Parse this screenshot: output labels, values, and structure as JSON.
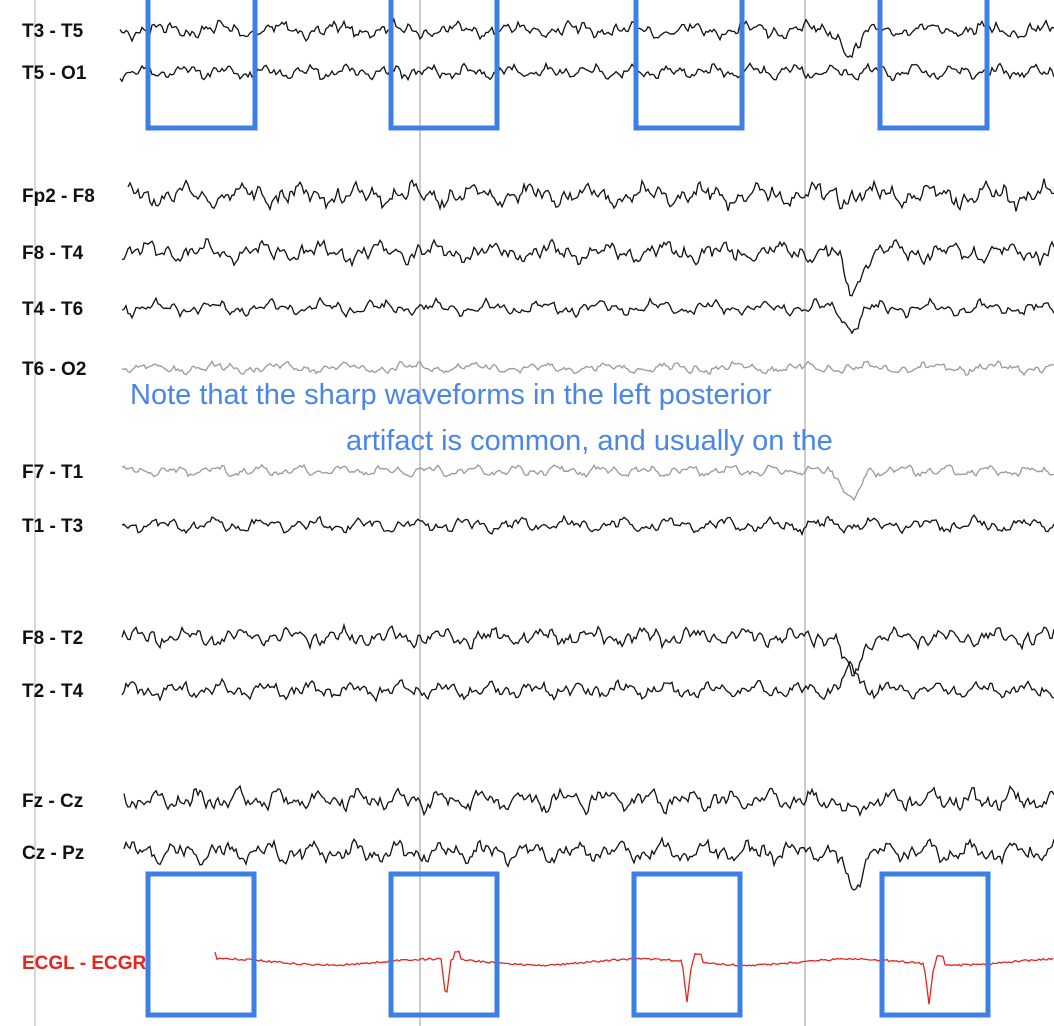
{
  "channels": [
    "T3 - T5",
    "T5 - O1",
    "Fp2 - F8",
    "F8 - T4",
    "T4 - T6",
    "T6 - O2",
    "F7 - T1",
    "T1 - T3",
    "F8 - T2",
    "T2 - T4",
    "Fz - Cz",
    "Cz - Pz",
    "ECGL - ECGR"
  ],
  "note": {
    "line1": "Note that the sharp waveforms in the left posterior",
    "line2": "artifact is common, and usually on the"
  }
}
